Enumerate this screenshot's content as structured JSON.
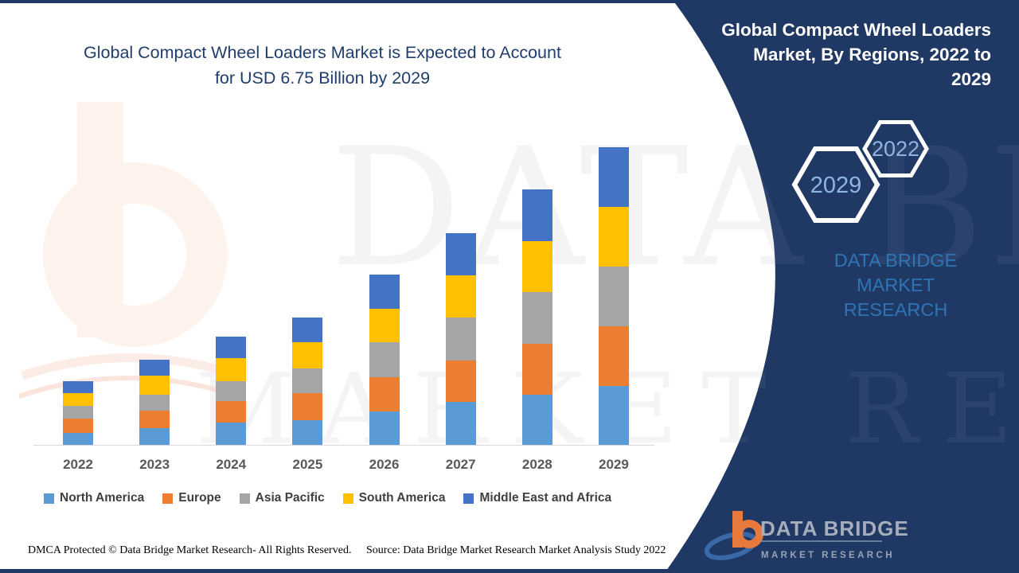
{
  "page": {
    "left_title_line1": "Global Compact Wheel Loaders Market is Expected to Account",
    "left_title_line2": "for USD 6.75 Billion by 2029"
  },
  "chart_data": {
    "type": "bar",
    "stacked": true,
    "title": "Global Compact Wheel Loaders Market, By Regions, 2022 to 2029",
    "unit": "USD Billion",
    "categories": [
      "2022",
      "2023",
      "2024",
      "2025",
      "2026",
      "2027",
      "2028",
      "2029"
    ],
    "series": [
      {
        "name": "North America",
        "color": "#5b9bd5",
        "values": [
          0.27,
          0.38,
          0.51,
          0.56,
          0.76,
          0.97,
          1.14,
          1.34
        ]
      },
      {
        "name": "Europe",
        "color": "#ed7d31",
        "values": [
          0.32,
          0.4,
          0.49,
          0.61,
          0.78,
          0.94,
          1.16,
          1.35
        ]
      },
      {
        "name": "Asia Pacific",
        "color": "#a5a5a5",
        "values": [
          0.29,
          0.36,
          0.45,
          0.56,
          0.79,
          0.97,
          1.16,
          1.35
        ]
      },
      {
        "name": "South America",
        "color": "#ffc000",
        "values": [
          0.29,
          0.43,
          0.51,
          0.6,
          0.76,
          0.96,
          1.17,
          1.36
        ]
      },
      {
        "name": "Middle East and Africa",
        "color": "#4472c4",
        "values": [
          0.27,
          0.36,
          0.49,
          0.56,
          0.78,
          0.96,
          1.16,
          1.35
        ]
      }
    ],
    "totals": [
      1.44,
      1.93,
      2.45,
      2.89,
      3.87,
      4.8,
      5.79,
      6.75
    ],
    "highlight_total_2029": "USD 6.75 Billion",
    "value_axis_visible": false,
    "grid": false,
    "legend_position": "bottom"
  },
  "side_panel": {
    "title_lines": [
      "Global Compact Wheel Loaders",
      "Market, By Regions, 2022 to",
      "2029"
    ],
    "hexagons": [
      {
        "label": "2022"
      },
      {
        "label": "2029"
      }
    ],
    "brand_text_line1": "DATA BRIDGE MARKET",
    "brand_text_line2": "RESEARCH",
    "colors": {
      "panel": "#1f3864",
      "brand_blue": "#2e75b6",
      "hexagon_year": "#8fb4e3"
    }
  },
  "logo": {
    "name": "DATA BRIDGE",
    "subname": "MARKET RESEARCH"
  },
  "watermark": {
    "line1": "DATA BRIDGE",
    "line2": "MARKET RESEARCH"
  },
  "footer": {
    "dmca": "DMCA Protected © Data Bridge Market Research- All Rights Reserved.",
    "source": "Source: Data Bridge Market Research Market Analysis Study 2022"
  }
}
